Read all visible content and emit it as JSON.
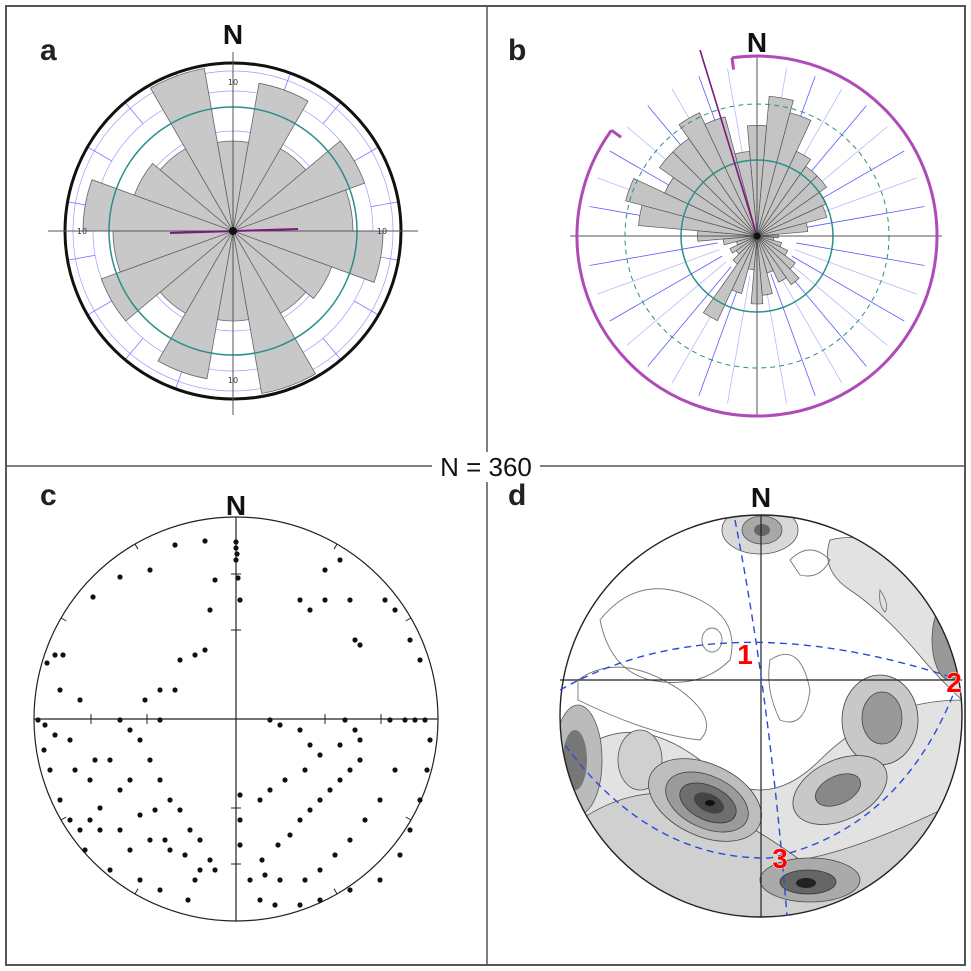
{
  "figure": {
    "center_label": "N = 360",
    "panels": [
      {
        "id": "a",
        "letter": "a",
        "north": "N",
        "type": "rose-diagram"
      },
      {
        "id": "b",
        "letter": "b",
        "north": "N",
        "type": "rose-diagram"
      },
      {
        "id": "c",
        "letter": "c",
        "north": "N",
        "type": "stereonet-poles"
      },
      {
        "id": "d",
        "letter": "d",
        "north": "N",
        "type": "stereonet-density-contours"
      }
    ],
    "rose_tick_label": "10",
    "girdle_labels": [
      "1",
      "2",
      "3"
    ],
    "colors": {
      "frame": "#555555",
      "petal_fill": "#c8c8c8",
      "teal_circle": "#2a8f8a",
      "blue_grid": "#6b6bff",
      "magenta": "#b04ab8",
      "girdle_dash": "#2a4bd8",
      "girdle_label": "#ff0000"
    }
  }
}
